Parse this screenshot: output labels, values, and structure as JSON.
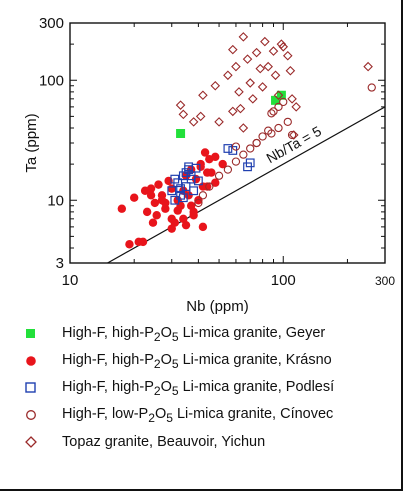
{
  "colors": {
    "geyer": "#22e03a",
    "krasno": "#e8141b",
    "podlesi": "#2040b0",
    "cinovec": "#9a2a2a",
    "beauvoir": "#9a2a2a",
    "axis": "#111111"
  },
  "chart_data": {
    "type": "scatter",
    "x_scale": "log",
    "y_scale": "log",
    "xlabel": "Nb (ppm)",
    "ylabel": "Ta (ppm)",
    "xlim": [
      10,
      300
    ],
    "ylim": [
      3,
      300
    ],
    "x_ticks": [
      10,
      100,
      300
    ],
    "y_ticks": [
      3,
      10,
      100,
      300
    ],
    "reference_line": {
      "label": "Nb/Ta = 5",
      "ratio": 5
    },
    "series": [
      {
        "name": "High-F, high-P2O5 Li-mica granite, Geyer",
        "marker": "filled-square",
        "x": [
          33,
          92,
          98
        ],
        "y": [
          36,
          68,
          75
        ]
      },
      {
        "name": "High-F, high-P2O5 Li-mica granite, Krásno",
        "marker": "filled-circle",
        "x": [
          17.5,
          19,
          20,
          21,
          22,
          22.5,
          23,
          24,
          24.5,
          25,
          26,
          27,
          28,
          29,
          30,
          31,
          32,
          33,
          34,
          35,
          36,
          37,
          38,
          39,
          40,
          41,
          42,
          43,
          44,
          45,
          46,
          48,
          24,
          25.5,
          28,
          30,
          32,
          35,
          38,
          42,
          27,
          30,
          34,
          37,
          41,
          44,
          48,
          52
        ],
        "y": [
          8.5,
          4.3,
          10.5,
          4.5,
          4.5,
          12,
          8,
          12.5,
          6.5,
          9.5,
          13.5,
          11,
          8.5,
          14.5,
          7,
          6.5,
          10,
          9,
          12,
          16,
          11,
          18,
          8,
          15,
          10,
          20,
          6,
          25,
          13,
          22,
          17,
          14,
          11,
          7.5,
          9.5,
          5.8,
          8.2,
          6.2,
          7.5,
          13,
          10,
          12.5,
          7,
          9,
          19,
          17,
          23,
          20
        ]
      },
      {
        "name": "High-F, high-P2O5 Li-mica granite, Podlesí",
        "marker": "open-square",
        "x": [
          30,
          31,
          32,
          33,
          34,
          35,
          36,
          37,
          38,
          31,
          33,
          35,
          37,
          40,
          34,
          36,
          55,
          58,
          68,
          70,
          39
        ],
        "y": [
          12,
          10,
          14,
          11,
          16,
          13,
          18,
          15,
          12,
          15,
          12.5,
          17,
          16,
          14.5,
          10.5,
          19,
          27,
          26,
          19,
          20.5,
          18.5
        ]
      },
      {
        "name": "High-F, low-P2O5 Li-mica granite, Cínovec",
        "marker": "open-circle",
        "x": [
          40,
          42,
          45,
          50,
          55,
          60,
          65,
          70,
          75,
          80,
          85,
          88,
          90,
          95,
          100,
          105,
          110,
          60,
          75,
          88,
          95,
          260
        ],
        "y": [
          9.5,
          11,
          13,
          16,
          18,
          21,
          24,
          27,
          30,
          34,
          38,
          53,
          55,
          60,
          66,
          45,
          35,
          28,
          30,
          36,
          40,
          87
        ]
      },
      {
        "name": "Topaz granite, Beauvoir, Yichun",
        "marker": "open-diamond",
        "x": [
          33,
          34,
          38,
          41,
          42,
          48,
          50,
          55,
          58,
          60,
          62,
          63,
          65,
          68,
          70,
          72,
          75,
          78,
          80,
          82,
          85,
          90,
          92,
          95,
          98,
          100,
          105,
          108,
          110,
          112,
          115,
          65,
          58,
          250
        ],
        "y": [
          62,
          52,
          45,
          50,
          75,
          90,
          45,
          110,
          180,
          130,
          80,
          58,
          230,
          150,
          95,
          70,
          170,
          125,
          88,
          210,
          130,
          175,
          110,
          75,
          200,
          190,
          160,
          120,
          70,
          35,
          60,
          40,
          55,
          130
        ]
      }
    ]
  },
  "legend": [
    {
      "symbol": "filled-square",
      "prefix": "High-F, high-P",
      "sub": "2",
      "mid": "O",
      "sub2": "5",
      "suffix": " Li-mica granite, Geyer"
    },
    {
      "symbol": "filled-circle",
      "prefix": "High-F, high-P",
      "sub": "2",
      "mid": "O",
      "sub2": "5",
      "suffix": " Li-mica granite, Krásno"
    },
    {
      "symbol": "open-square",
      "prefix": "High-F, high-P",
      "sub": "2",
      "mid": "O",
      "sub2": "5",
      "suffix": " Li-mica granite, Podlesí"
    },
    {
      "symbol": "open-circle",
      "prefix": "High-F, low-P",
      "sub": "2",
      "mid": "O",
      "sub2": "5",
      "suffix": " Li-mica granite, Cínovec"
    },
    {
      "symbol": "open-diamond",
      "prefix": "Topaz granite, Beauvoir, Yichun",
      "sub": "",
      "mid": "",
      "sub2": "",
      "suffix": ""
    }
  ]
}
